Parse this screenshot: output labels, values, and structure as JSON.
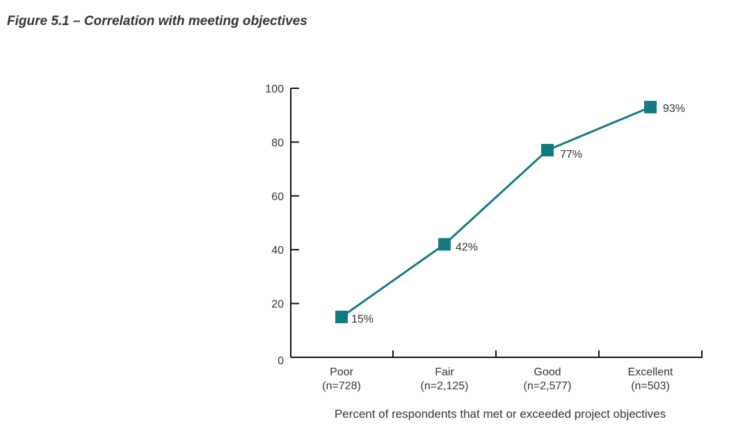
{
  "figure_title": "Figure 5.1 – Correlation with meeting objectives",
  "chart_data": {
    "type": "line",
    "title": "Figure 5.1 – Correlation with meeting objectives",
    "xlabel": "Percent of respondents that met or exceeded project objectives",
    "ylabel": "",
    "categories": [
      "Poor",
      "Fair",
      "Good",
      "Excellent"
    ],
    "category_sublabels": [
      "(n=728)",
      "(n=2,125)",
      "(n=2,577)",
      "(n=503)"
    ],
    "values": [
      15,
      42,
      77,
      93
    ],
    "data_labels": [
      "15%",
      "42%",
      "77%",
      "93%"
    ],
    "ylim": [
      0,
      100
    ],
    "yticks": [
      0,
      20,
      40,
      60,
      80,
      100
    ],
    "ytick_labels": [
      "0",
      "20",
      "40",
      "60",
      "80",
      "100"
    ],
    "grid": false,
    "marker": "square",
    "series_color": "#127a80"
  }
}
